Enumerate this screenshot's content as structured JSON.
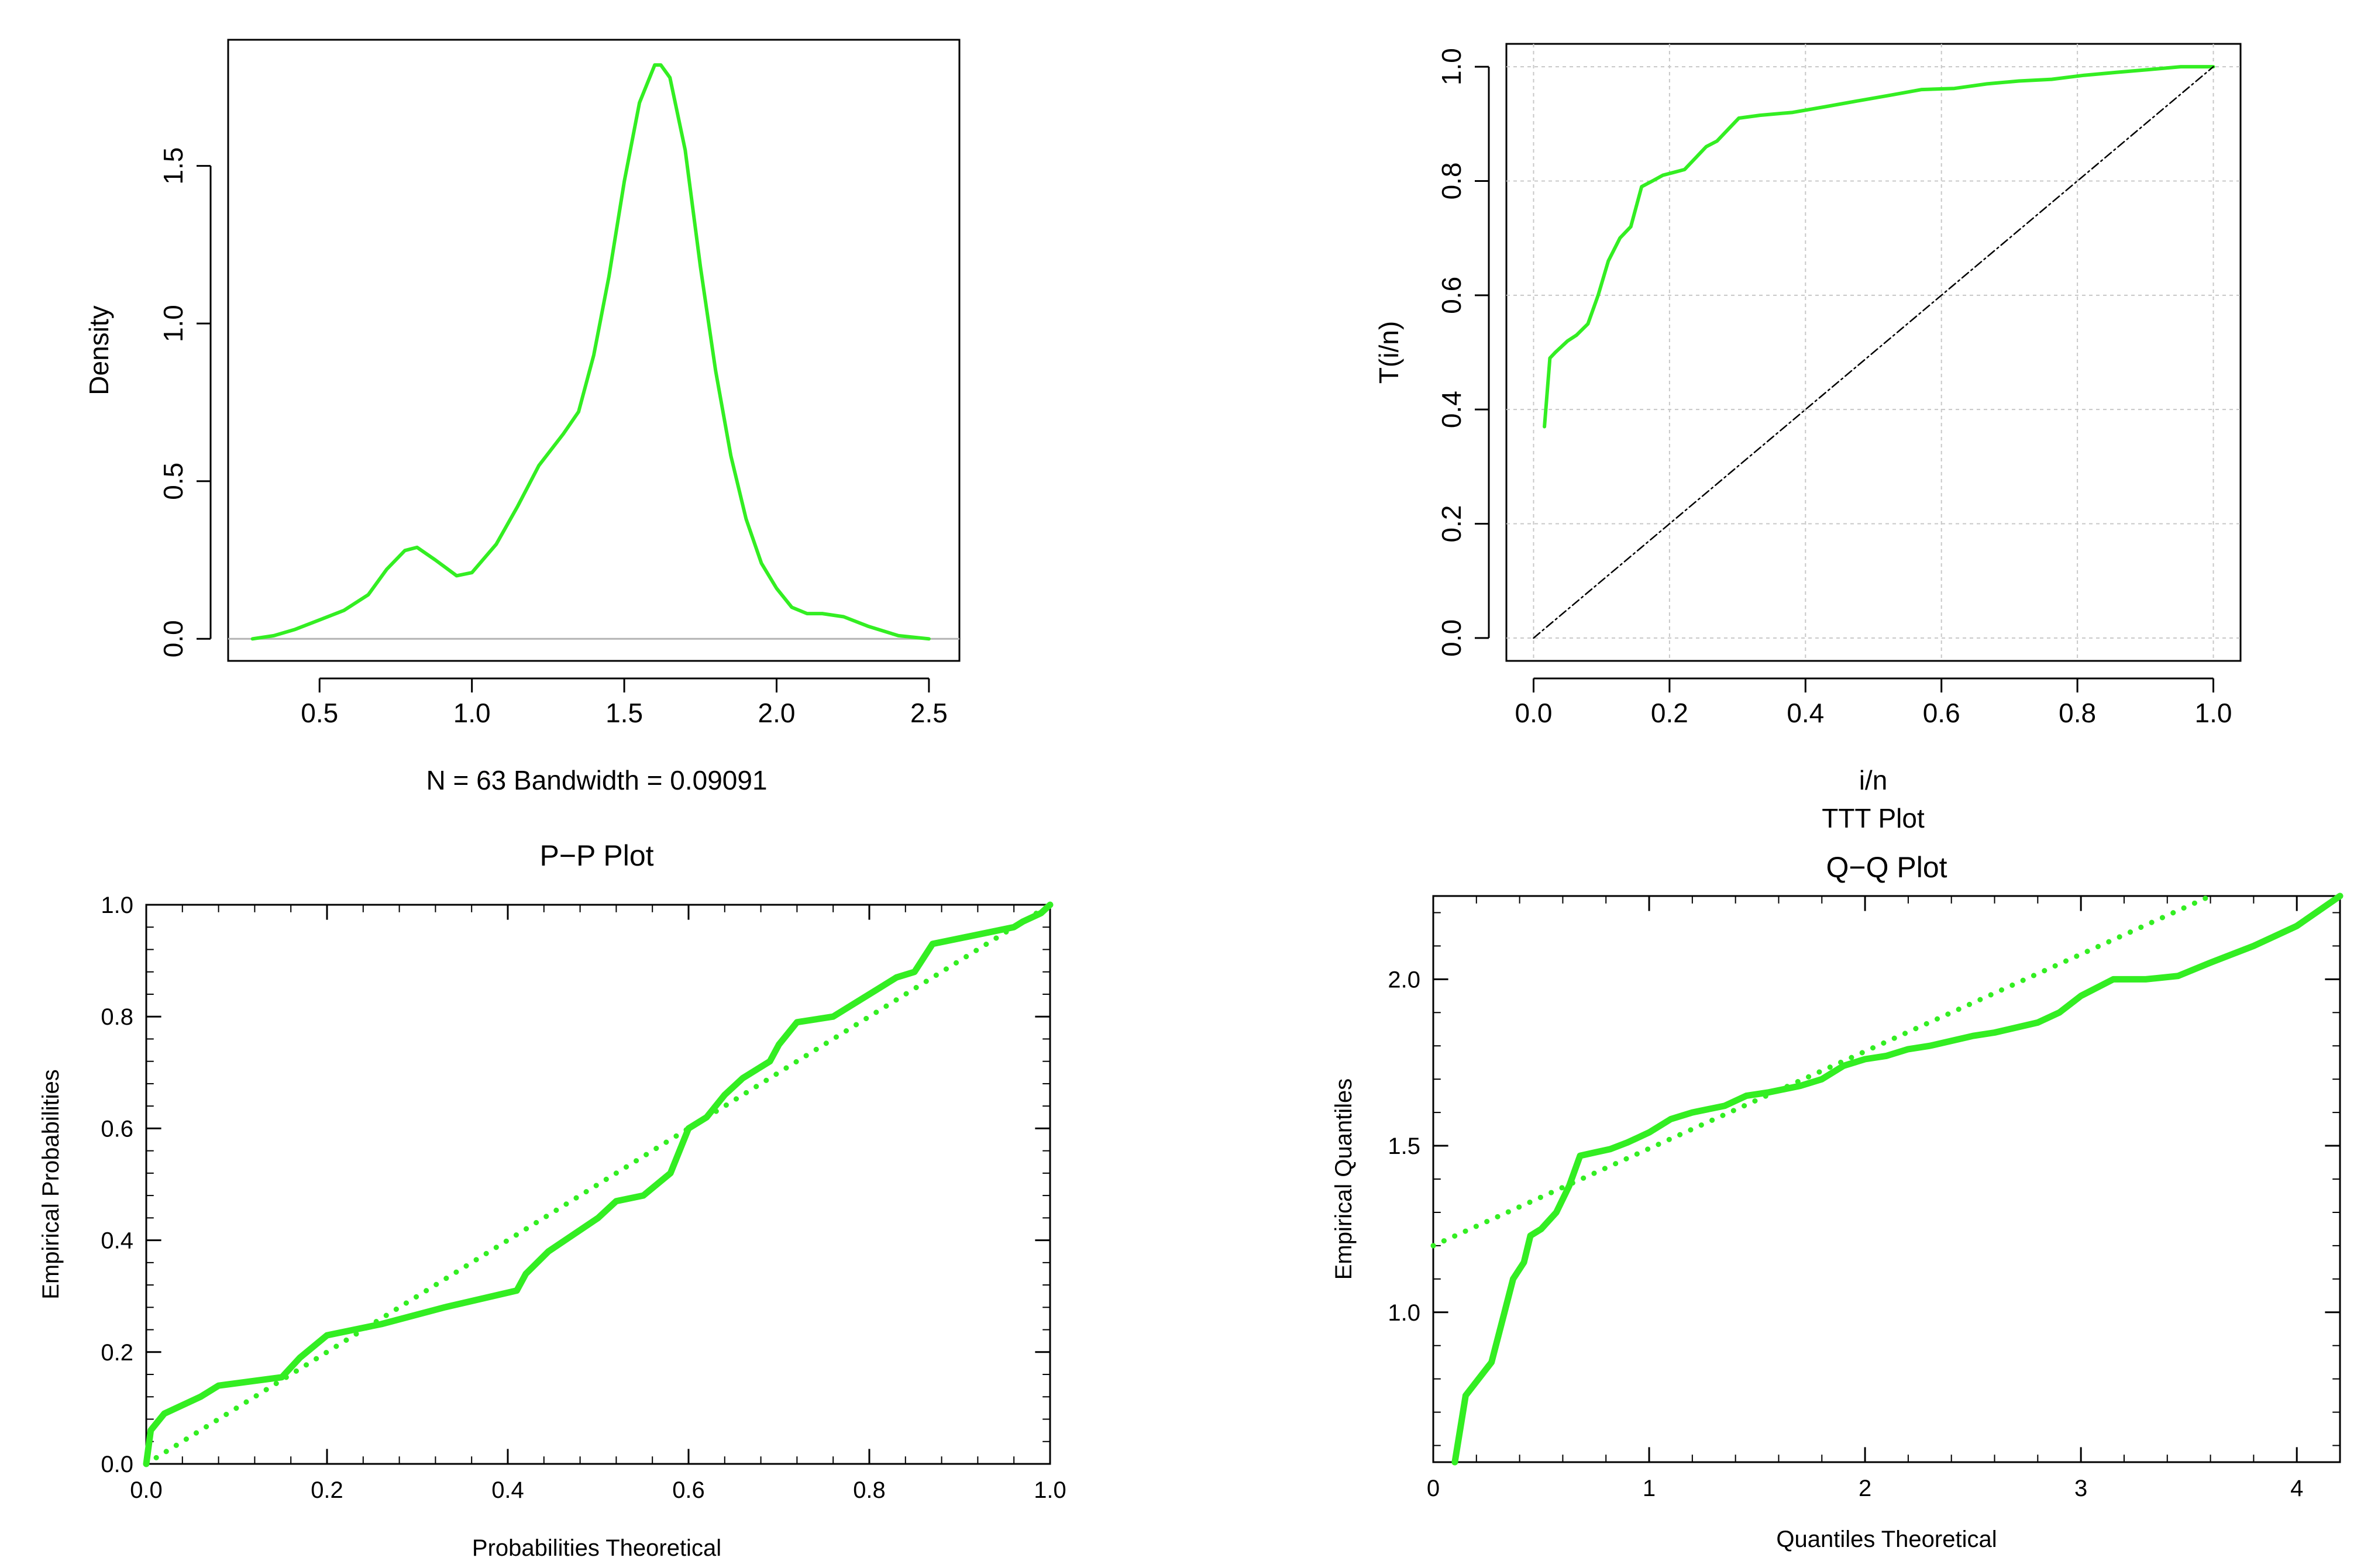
{
  "chart_data": [
    {
      "id": "density",
      "type": "line",
      "title": "",
      "xlabel": "N = 63   Bandwidth = 0.09091",
      "ylabel": "Density",
      "xlim": [
        0.2,
        2.6
      ],
      "ylim": [
        -0.07,
        1.9
      ],
      "xticks": [
        0.5,
        1.0,
        1.5,
        2.0,
        2.5
      ],
      "xtick_labels": [
        "0.5",
        "1.0",
        "1.5",
        "2.0",
        "2.5"
      ],
      "yticks": [
        0.0,
        0.5,
        1.0,
        1.5
      ],
      "ytick_labels": [
        "0.0",
        "0.5",
        "1.0",
        "1.5"
      ],
      "grid": false,
      "series": [
        {
          "name": "density",
          "color": "#33ee22",
          "x": [
            0.28,
            0.35,
            0.42,
            0.5,
            0.58,
            0.66,
            0.72,
            0.78,
            0.82,
            0.88,
            0.95,
            1.0,
            1.08,
            1.15,
            1.22,
            1.3,
            1.35,
            1.4,
            1.45,
            1.5,
            1.55,
            1.6,
            1.62,
            1.65,
            1.7,
            1.75,
            1.8,
            1.85,
            1.9,
            1.95,
            2.0,
            2.05,
            2.1,
            2.15,
            2.22,
            2.3,
            2.4,
            2.5
          ],
          "y": [
            0.0,
            0.01,
            0.03,
            0.06,
            0.09,
            0.14,
            0.22,
            0.28,
            0.29,
            0.25,
            0.2,
            0.21,
            0.3,
            0.42,
            0.55,
            0.65,
            0.72,
            0.9,
            1.15,
            1.45,
            1.7,
            1.82,
            1.82,
            1.78,
            1.55,
            1.18,
            0.85,
            0.58,
            0.38,
            0.24,
            0.16,
            0.1,
            0.08,
            0.08,
            0.07,
            0.04,
            0.01,
            0.0
          ]
        }
      ]
    },
    {
      "id": "ttt",
      "type": "line",
      "title": "TTT Plot",
      "xlabel": "i/n",
      "ylabel": "T(i/n)",
      "xlim": [
        -0.04,
        1.04
      ],
      "ylim": [
        -0.04,
        1.04
      ],
      "xticks": [
        0.0,
        0.2,
        0.4,
        0.6,
        0.8,
        1.0
      ],
      "xtick_labels": [
        "0.0",
        "0.2",
        "0.4",
        "0.6",
        "0.8",
        "1.0"
      ],
      "yticks": [
        0.0,
        0.2,
        0.4,
        0.6,
        0.8,
        1.0
      ],
      "ytick_labels": [
        "0.0",
        "0.2",
        "0.4",
        "0.6",
        "0.8",
        "1.0"
      ],
      "grid": true,
      "series": [
        {
          "name": "TTT",
          "color": "#33ee22",
          "x": [
            0.016,
            0.024,
            0.032,
            0.05,
            0.063,
            0.08,
            0.095,
            0.11,
            0.127,
            0.143,
            0.159,
            0.175,
            0.19,
            0.206,
            0.222,
            0.238,
            0.254,
            0.27,
            0.286,
            0.302,
            0.333,
            0.381,
            0.429,
            0.476,
            0.524,
            0.571,
            0.619,
            0.667,
            0.714,
            0.762,
            0.81,
            0.857,
            0.905,
            0.952,
            1.0
          ],
          "y": [
            0.37,
            0.49,
            0.5,
            0.52,
            0.53,
            0.55,
            0.6,
            0.66,
            0.7,
            0.72,
            0.79,
            0.8,
            0.81,
            0.815,
            0.82,
            0.84,
            0.86,
            0.87,
            0.89,
            0.91,
            0.915,
            0.92,
            0.93,
            0.94,
            0.95,
            0.96,
            0.962,
            0.97,
            0.975,
            0.978,
            0.985,
            0.99,
            0.995,
            1.0,
            1.0
          ]
        },
        {
          "name": "reference",
          "color": "#000000",
          "style": "dashed",
          "x": [
            0.0,
            1.0
          ],
          "y": [
            0.0,
            1.0
          ]
        }
      ]
    },
    {
      "id": "pp",
      "type": "line",
      "title": "P−P Plot",
      "xlabel": "Probabilities Theoretical",
      "ylabel": "Empirical  Probabilities",
      "xlim": [
        0.0,
        1.0
      ],
      "ylim": [
        0.0,
        1.0
      ],
      "xticks": [
        0.0,
        0.2,
        0.4,
        0.6,
        0.8,
        1.0
      ],
      "xtick_labels": [
        "0.0",
        "0.2",
        "0.4",
        "0.6",
        "0.8",
        "1.0"
      ],
      "yticks": [
        0.0,
        0.2,
        0.4,
        0.6,
        0.8,
        1.0
      ],
      "ytick_labels": [
        "0.0",
        "0.2",
        "0.4",
        "0.6",
        "0.8",
        "1.0"
      ],
      "grid": false,
      "series": [
        {
          "name": "empirical",
          "color": "#33ee22",
          "x": [
            0.0,
            0.005,
            0.02,
            0.06,
            0.08,
            0.15,
            0.17,
            0.2,
            0.26,
            0.33,
            0.41,
            0.42,
            0.445,
            0.5,
            0.52,
            0.55,
            0.58,
            0.6,
            0.62,
            0.64,
            0.66,
            0.69,
            0.7,
            0.72,
            0.76,
            0.78,
            0.81,
            0.83,
            0.85,
            0.87,
            0.9,
            0.96,
            0.97,
            0.99,
            1.0
          ],
          "y": [
            0.0,
            0.06,
            0.09,
            0.12,
            0.14,
            0.155,
            0.19,
            0.23,
            0.25,
            0.28,
            0.31,
            0.34,
            0.38,
            0.44,
            0.47,
            0.48,
            0.52,
            0.6,
            0.62,
            0.66,
            0.69,
            0.72,
            0.75,
            0.79,
            0.8,
            0.82,
            0.85,
            0.87,
            0.88,
            0.93,
            0.94,
            0.96,
            0.97,
            0.985,
            1.0
          ]
        },
        {
          "name": "reference",
          "color": "#33ee22",
          "style": "dotted",
          "x": [
            0.0,
            1.0
          ],
          "y": [
            0.0,
            1.0
          ]
        }
      ]
    },
    {
      "id": "qq",
      "type": "line",
      "title": "Q−Q Plot",
      "xlabel": "Quantiles Theoretical",
      "ylabel": "Empirical  Quantiles",
      "xlim": [
        0.0,
        4.2
      ],
      "ylim": [
        0.55,
        2.25
      ],
      "xticks": [
        0,
        1,
        2,
        3,
        4
      ],
      "xtick_labels": [
        "0",
        "1",
        "2",
        "3",
        "4"
      ],
      "yticks": [
        1.0,
        1.5,
        2.0
      ],
      "ytick_labels": [
        "1.0",
        "1.5",
        "2.0"
      ],
      "grid": false,
      "series": [
        {
          "name": "empirical",
          "color": "#33ee22",
          "x": [
            0.1,
            0.15,
            0.27,
            0.33,
            0.37,
            0.42,
            0.45,
            0.5,
            0.57,
            0.63,
            0.68,
            0.75,
            0.82,
            0.9,
            1.0,
            1.1,
            1.2,
            1.35,
            1.45,
            1.55,
            1.7,
            1.8,
            1.9,
            2.0,
            2.1,
            2.2,
            2.3,
            2.5,
            2.6,
            2.8,
            2.9,
            3.0,
            3.15,
            3.3,
            3.45,
            3.6,
            3.8,
            4.0,
            4.2
          ],
          "y": [
            0.55,
            0.75,
            0.85,
            1.0,
            1.1,
            1.15,
            1.23,
            1.25,
            1.3,
            1.38,
            1.47,
            1.48,
            1.49,
            1.51,
            1.54,
            1.58,
            1.6,
            1.62,
            1.65,
            1.66,
            1.68,
            1.7,
            1.74,
            1.76,
            1.77,
            1.79,
            1.8,
            1.83,
            1.84,
            1.87,
            1.9,
            1.95,
            2.0,
            2.0,
            2.01,
            2.05,
            2.1,
            2.16,
            2.25
          ]
        },
        {
          "name": "reference",
          "color": "#33ee22",
          "style": "dotted",
          "x": [
            0.0,
            3.6
          ],
          "y": [
            1.2,
            2.25
          ]
        }
      ]
    }
  ]
}
